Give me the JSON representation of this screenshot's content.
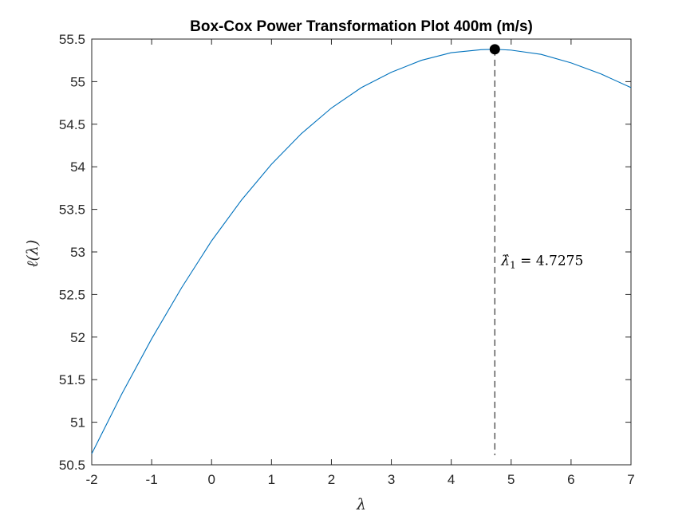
{
  "chart_data": {
    "type": "line",
    "title": "Box-Cox Power Transformation Plot 400m (m/s)",
    "xlabel": "λ",
    "ylabel": "ℓ(λ)",
    "xlim": [
      -2,
      7
    ],
    "ylim": [
      50.5,
      55.5
    ],
    "xticks": [
      "-2",
      "-1",
      "0",
      "1",
      "2",
      "3",
      "4",
      "5",
      "6",
      "7"
    ],
    "yticks": [
      "50.5",
      "51",
      "51.5",
      "52",
      "52.5",
      "53",
      "53.5",
      "54",
      "54.5",
      "55",
      "55.5"
    ],
    "grid": false,
    "series": [
      {
        "color": "#0072BD",
        "x": [
          -2,
          -1.5,
          -1,
          -0.5,
          0,
          0.5,
          1,
          1.5,
          2,
          2.5,
          3,
          3.5,
          4,
          4.5,
          4.7275,
          5,
          5.5,
          6,
          6.5,
          7
        ],
        "y": [
          50.63,
          51.33,
          51.98,
          52.58,
          53.13,
          53.61,
          54.03,
          54.39,
          54.69,
          54.93,
          55.11,
          55.25,
          55.34,
          55.375,
          55.38,
          55.37,
          55.32,
          55.22,
          55.09,
          54.93
        ]
      }
    ],
    "optimum": {
      "x": 4.7275,
      "y": 55.38,
      "marker_color": "#000000"
    },
    "annotation": {
      "symbol": "λ̂",
      "subscript": "1",
      "equals": "=",
      "value": "4.7275"
    }
  }
}
